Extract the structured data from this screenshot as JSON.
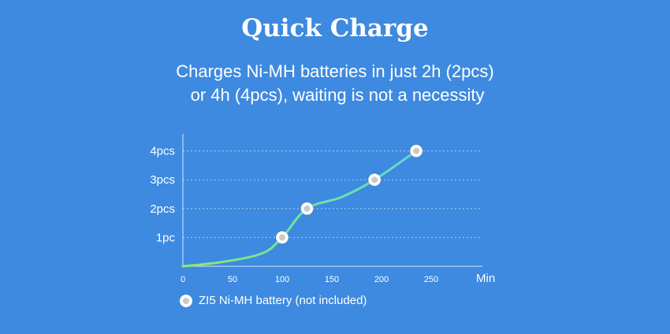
{
  "title": "Quick Charge",
  "subtitle_lines": [
    "Charges Ni-MH batteries in just 2h (2pcs)",
    " or 4h (4pcs), waiting is not a necessity"
  ],
  "legend": {
    "label": "ZI5 Ni-MH battery (not included)"
  },
  "chart_data": {
    "type": "line",
    "x_unit": "Min",
    "x_ticks": [
      0,
      50,
      100,
      150,
      200,
      250
    ],
    "y_ticks": [
      "1pc",
      "2pcs",
      "3pcs",
      "4pcs"
    ],
    "xlim": [
      0,
      290
    ],
    "ylim": [
      0,
      4.4
    ],
    "grid": "horizontal dashed",
    "series": [
      {
        "curve": [
          [
            0,
            0
          ],
          [
            40,
            0.15
          ],
          [
            80,
            0.45
          ],
          [
            100,
            1.0
          ],
          [
            125,
            2.0
          ],
          [
            160,
            2.4
          ],
          [
            193,
            3.0
          ],
          [
            235,
            4.0
          ]
        ],
        "markers": [
          {
            "x": 100,
            "y": 1
          },
          {
            "x": 125,
            "y": 2
          },
          {
            "x": 193,
            "y": 3
          },
          {
            "x": 235,
            "y": 4
          }
        ]
      }
    ],
    "colors": {
      "line_start": "#8fe86a",
      "line_end": "#5fd8d0",
      "marker_ring": "#ffffff",
      "marker_center": "#c9c9c9"
    }
  }
}
